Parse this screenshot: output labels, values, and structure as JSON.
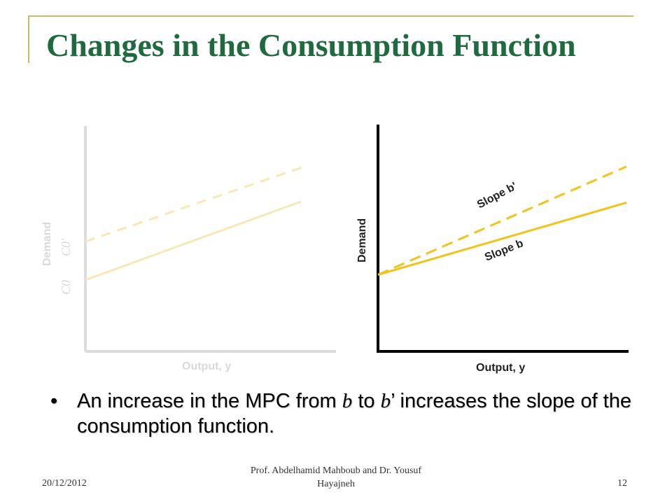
{
  "slide": {
    "title": "Changes in the Consumption Function",
    "bullet": {
      "part1": "An increase in the MPC from ",
      "b1": "b",
      "part2": " to ",
      "b2": "b",
      "part3": "’ increases the slope of the consumption function."
    },
    "footer": {
      "date": "20/12/2012",
      "author": "Prof. Abdelhamid Mahboub and Dr. Yousuf Hayajneh",
      "page": "12"
    }
  },
  "chart_data": [
    {
      "type": "line",
      "faded": true,
      "xlabel": "Output, y",
      "ylabel": "Demand",
      "y_tick_labels": [
        "C0'",
        "C0"
      ],
      "series": [
        {
          "values": [
            0,
            1
          ],
          "intercept": 0.55,
          "slope": 0.28,
          "style": "dashed"
        },
        {
          "values": [
            0,
            1
          ],
          "intercept": 0.38,
          "slope": 0.28,
          "style": "solid"
        }
      ],
      "colors": {
        "line": "#f6e9b6",
        "axis": "#d9d9d9",
        "text": "#d9d9d9"
      }
    },
    {
      "type": "line",
      "xlabel": "Output, y",
      "ylabel": "Demand",
      "annotations": [
        "Slope b'",
        "Slope b"
      ],
      "series": [
        {
          "x": [
            0,
            1
          ],
          "y": [
            0.34,
            0.82
          ],
          "style": "dashed"
        },
        {
          "x": [
            0,
            1
          ],
          "y": [
            0.34,
            0.66
          ],
          "style": "solid"
        }
      ],
      "colors": {
        "line": "#f3c21b",
        "axis": "#000000",
        "text": "#222222"
      }
    }
  ]
}
